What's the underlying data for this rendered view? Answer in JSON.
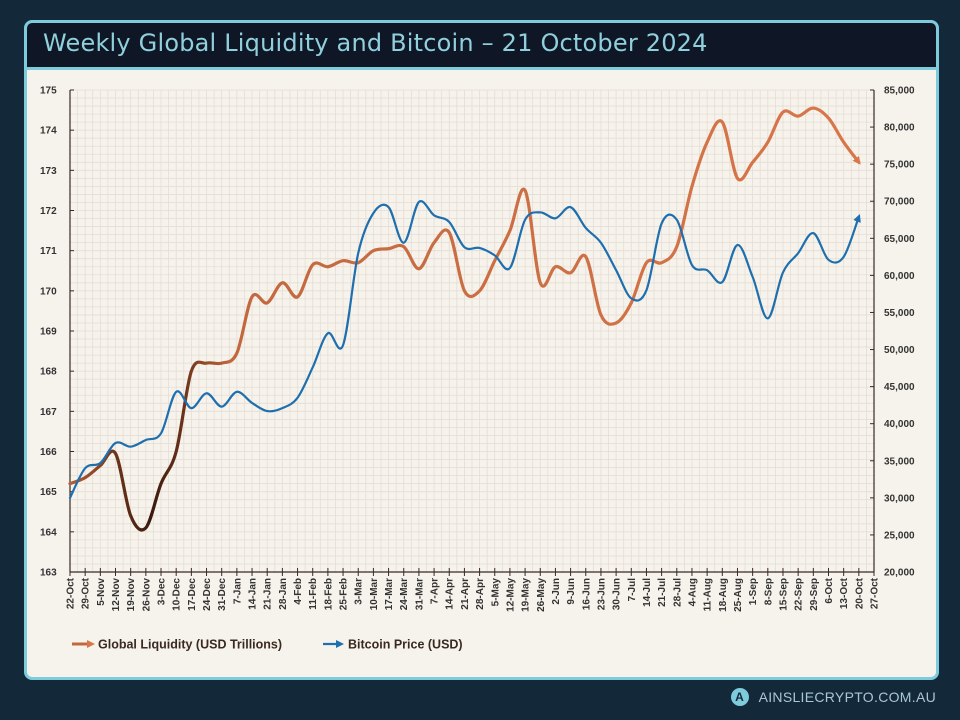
{
  "title": "Weekly Global Liquidity and Bitcoin – 21 October 2024",
  "footer": {
    "brand": "AINSLIECRYPTO.COM.AU",
    "logo_letter": "A"
  },
  "colors": {
    "liquidity": "#d9774b",
    "liquidity_dark": "#3a1a0e",
    "bitcoin": "#1f6fae",
    "title": "#8fd0dc",
    "border": "#7ecbdc",
    "background": "#13293a"
  },
  "chart_data": {
    "type": "line",
    "title": "Weekly Global Liquidity and Bitcoin – 21 October 2024",
    "grid": true,
    "legend_placement": "bottom-left",
    "x_tick_labels": [
      "22-Oct",
      "29-Oct",
      "5-Nov",
      "12-Nov",
      "19-Nov",
      "26-Nov",
      "3-Dec",
      "10-Dec",
      "17-Dec",
      "24-Dec",
      "31-Dec",
      "7-Jan",
      "14-Jan",
      "21-Jan",
      "28-Jan",
      "4-Feb",
      "11-Feb",
      "18-Feb",
      "25-Feb",
      "3-Mar",
      "10-Mar",
      "17-Mar",
      "24-Mar",
      "31-Mar",
      "7-Apr",
      "14-Apr",
      "21-Apr",
      "28-Apr",
      "5-May",
      "12-May",
      "19-May",
      "26-May",
      "2-Jun",
      "9-Jun",
      "16-Jun",
      "23-Jun",
      "30-Jun",
      "7-Jul",
      "14-Jul",
      "21-Jul",
      "28-Jul",
      "4-Aug",
      "11-Aug",
      "18-Aug",
      "25-Aug",
      "1-Sep",
      "8-Sep",
      "15-Sep",
      "22-Sep",
      "29-Sep",
      "6-Oct",
      "13-Oct",
      "20-Oct",
      "27-Oct"
    ],
    "y_left": {
      "range": [
        163,
        175
      ],
      "ticks": [
        "163",
        "164",
        "165",
        "166",
        "167",
        "168",
        "169",
        "170",
        "171",
        "172",
        "173",
        "174",
        "175"
      ]
    },
    "y_right": {
      "range": [
        20000,
        85000
      ],
      "ticks": [
        "20,000",
        "25,000",
        "30,000",
        "35,000",
        "40,000",
        "45,000",
        "50,000",
        "55,000",
        "60,000",
        "65,000",
        "70,000",
        "75,000",
        "80,000",
        "85,000"
      ]
    },
    "series": [
      {
        "name": "Global Liquidity (USD Trillions)",
        "axis": "left",
        "values": [
          165.2,
          165.35,
          165.65,
          165.95,
          164.4,
          164.1,
          165.2,
          166.0,
          168.0,
          168.2,
          168.2,
          168.45,
          169.85,
          169.7,
          170.2,
          169.85,
          170.65,
          170.6,
          170.75,
          170.7,
          171.0,
          171.05,
          171.1,
          170.55,
          171.2,
          171.45,
          170.0,
          170.0,
          170.75,
          171.5,
          172.5,
          170.2,
          170.6,
          170.45,
          170.85,
          169.4,
          169.2,
          169.7,
          170.7,
          170.7,
          171.1,
          172.6,
          173.7,
          174.2,
          172.8,
          173.2,
          173.7,
          174.45,
          174.35,
          174.55,
          174.3,
          173.7,
          173.2
        ]
      },
      {
        "name": "Bitcoin Price (USD)",
        "axis": "right",
        "values": [
          30000,
          34000,
          34700,
          37400,
          36900,
          37800,
          38700,
          44300,
          42100,
          44100,
          42300,
          44300,
          42800,
          41700,
          42100,
          43500,
          47600,
          52200,
          50600,
          63000,
          68400,
          69200,
          64400,
          69900,
          68100,
          67200,
          63800,
          63700,
          62700,
          61000,
          67500,
          68500,
          67700,
          69200,
          66400,
          64400,
          60700,
          56900,
          58000,
          67000,
          67500,
          61400,
          60700,
          59100,
          64100,
          59800,
          54200,
          60400,
          63000,
          65700,
          62100,
          62500,
          67900
        ]
      }
    ]
  }
}
